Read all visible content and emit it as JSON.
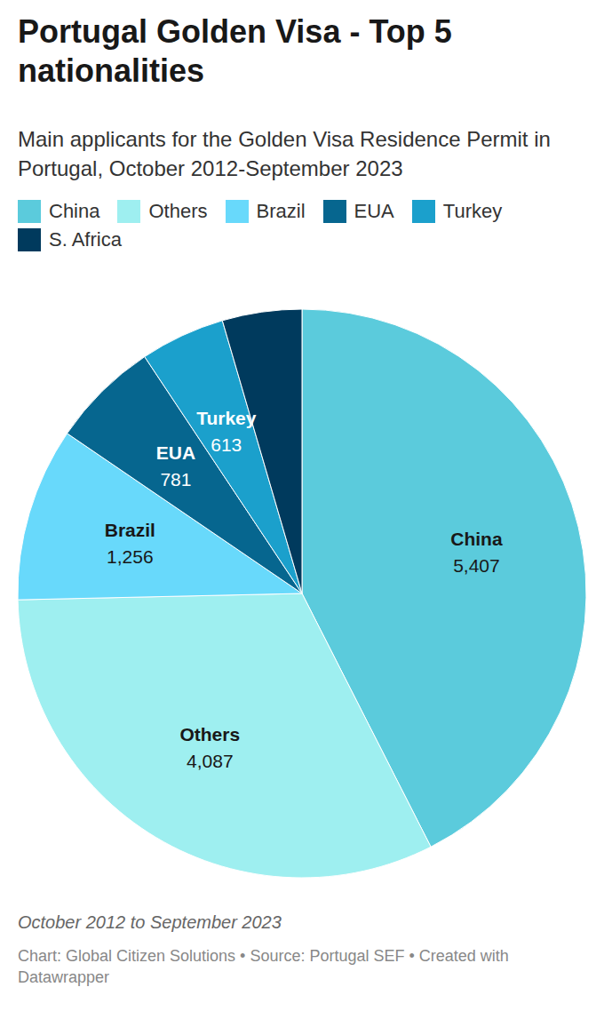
{
  "chart_data": {
    "type": "pie",
    "title": "Portugal Golden Visa - Top 5 nationalities",
    "subtitle": "Main applicants for the Golden Visa Residence Permit in Portugal, October 2012-September 2023",
    "note": "October 2012 to September 2023",
    "source": "Chart: Global Citizen Solutions • Source: Portugal SEF • Created with Datawrapper",
    "categories": [
      "China",
      "Others",
      "Brazil",
      "EUA",
      "Turkey",
      "S. Africa"
    ],
    "values": [
      5407,
      4087,
      1256,
      781,
      613,
      575
    ],
    "value_labels": [
      "5,407",
      "4,087",
      "1,256",
      "781",
      "613",
      null
    ],
    "colors": [
      "#5bcbdc",
      "#9eeff0",
      "#68d9fb",
      "#06668f",
      "#1ba0cc",
      "#003a5d"
    ],
    "data_labels": true,
    "legend": "top"
  }
}
